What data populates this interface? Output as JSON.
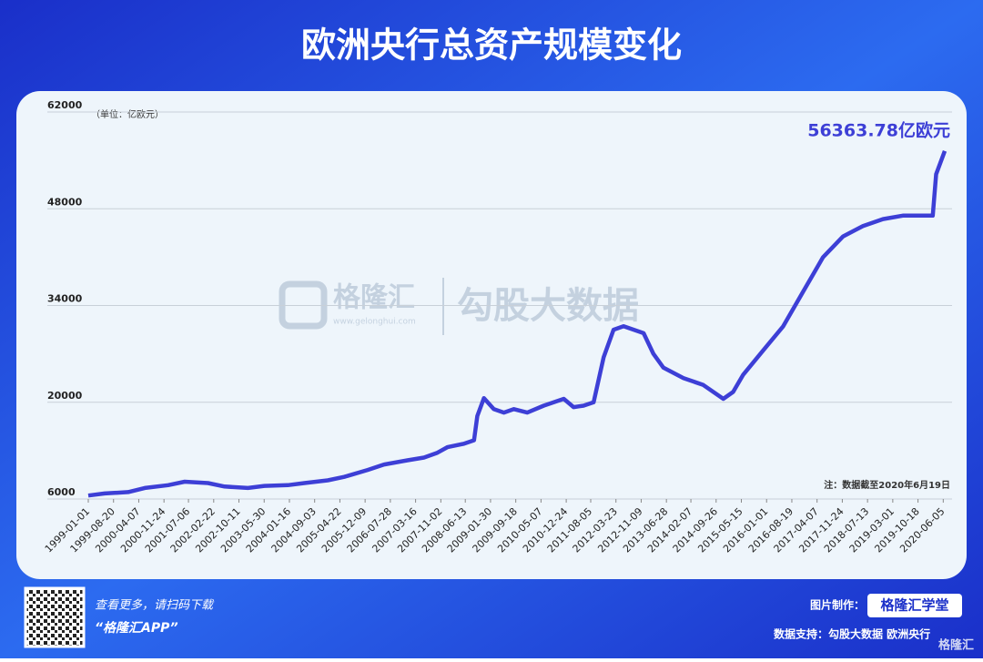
{
  "chart_data": {
    "type": "line",
    "title": "欧洲央行总资产规模变化",
    "y_label": "（单位：亿欧元）",
    "note": "注：数据截至2020年6月19日",
    "x": [
      "1999-01-01",
      "1999-06-01",
      "2000-01-01",
      "2000-06-01",
      "2001-01-01",
      "2001-06-01",
      "2002-01-01",
      "2002-06-01",
      "2003-01-01",
      "2003-06-01",
      "2004-01-01",
      "2004-06-01",
      "2005-01-01",
      "2005-06-01",
      "2006-01-01",
      "2006-06-01",
      "2007-01-01",
      "2007-06-01",
      "2007-10-01",
      "2008-01-01",
      "2008-06-01",
      "2008-09-01",
      "2008-10-01",
      "2008-12-01",
      "2009-03-01",
      "2009-06-01",
      "2009-09-01",
      "2010-01-01",
      "2010-06-01",
      "2010-12-01",
      "2011-03-01",
      "2011-06-01",
      "2011-09-01",
      "2011-12-01",
      "2012-03-01",
      "2012-06-01",
      "2012-12-01",
      "2013-03-01",
      "2013-06-01",
      "2013-12-01",
      "2014-06-01",
      "2014-12-01",
      "2015-03-01",
      "2015-06-01",
      "2015-12-01",
      "2016-06-01",
      "2016-12-01",
      "2017-06-01",
      "2017-12-01",
      "2018-06-01",
      "2018-12-01",
      "2019-06-01",
      "2019-12-01",
      "2020-03-01",
      "2020-04-01",
      "2020-06-19"
    ],
    "series": [
      {
        "name": "欧洲央行总资产",
        "color": "#3d3fd6",
        "values": [
          6500,
          6800,
          7000,
          7600,
          8000,
          8500,
          8300,
          7800,
          7600,
          7900,
          8000,
          8300,
          8700,
          9200,
          10200,
          11000,
          11600,
          12000,
          12700,
          13500,
          14000,
          14500,
          18000,
          20600,
          19000,
          18500,
          19000,
          18500,
          19500,
          20500,
          19300,
          19500,
          20000,
          26500,
          30500,
          31000,
          30000,
          27000,
          25000,
          23500,
          22500,
          20500,
          21500,
          24000,
          27500,
          31000,
          36000,
          41000,
          44000,
          45500,
          46500,
          47000,
          47000,
          47000,
          53000,
          56363.78
        ],
        "value_labels": [
          null,
          null,
          null,
          null,
          null,
          null,
          null,
          null,
          null,
          null,
          null,
          null,
          null,
          null,
          null,
          null,
          null,
          null,
          null,
          null,
          null,
          null,
          null,
          null,
          null,
          null,
          null,
          null,
          null,
          null,
          null,
          null,
          null,
          null,
          null,
          null,
          null,
          null,
          null,
          null,
          null,
          null,
          null,
          null,
          null,
          null,
          null,
          null,
          null,
          null,
          null,
          null,
          null,
          null,
          null,
          "56363.78亿欧元"
        ]
      }
    ],
    "xlim": [
      "1999-01-01",
      "2020-06-19"
    ],
    "xticks": [
      "1999-01-01",
      "1999-08-20",
      "2000-04-07",
      "2000-11-24",
      "2001-07-06",
      "2002-02-22",
      "2002-10-11",
      "2003-05-30",
      "2004-01-16",
      "2004-09-03",
      "2005-04-22",
      "2005-12-09",
      "2006-07-28",
      "2007-03-16",
      "2007-11-02",
      "2008-06-13",
      "2009-01-30",
      "2009-09-18",
      "2010-05-07",
      "2010-12-24",
      "2011-08-05",
      "2012-03-23",
      "2012-11-09",
      "2013-06-28",
      "2014-02-07",
      "2014-09-26",
      "2015-05-15",
      "2016-01-01",
      "2016-08-19",
      "2017-04-07",
      "2017-11-24",
      "2018-07-13",
      "2019-03-01",
      "2019-10-18",
      "2020-06-05"
    ],
    "ylim": [
      6000,
      62000
    ],
    "yticks": [
      6000,
      20000,
      34000,
      48000,
      62000
    ],
    "grid": true
  },
  "watermark": {
    "brand": "格隆汇",
    "url": "www.gelonghui.com",
    "product": "勾股大数据"
  },
  "footer": {
    "scan_text": "查看更多，请扫码下载",
    "app_name": "“格隆汇APP”",
    "made_by_label": "图片制作：",
    "made_by": "格隆汇学堂",
    "source": "数据支持：勾股大数据 欧洲央行",
    "logo": "格隆汇"
  }
}
